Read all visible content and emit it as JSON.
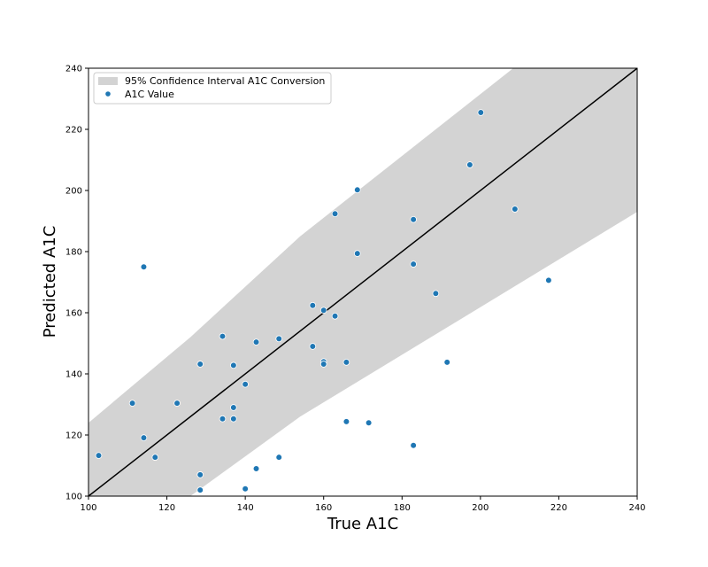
{
  "chart_data": {
    "type": "scatter",
    "title": "",
    "xlabel": "True A1C",
    "ylabel": "Predicted A1C",
    "xlim": [
      100,
      240
    ],
    "ylim": [
      100,
      240
    ],
    "xticks": [
      100,
      120,
      140,
      160,
      180,
      200,
      220,
      240
    ],
    "yticks": [
      100,
      120,
      140,
      160,
      180,
      200,
      220,
      240
    ],
    "grid": false,
    "legend_position": "top-left",
    "legend": [
      {
        "label": "95% Confidence Interval A1C Conversion",
        "kind": "band",
        "color": "#d3d3d3"
      },
      {
        "label": "A1C Value",
        "kind": "point",
        "color": "#1f77b4"
      }
    ],
    "identity_line": {
      "x": [
        100,
        240
      ],
      "y": [
        100,
        240
      ],
      "color": "#000000"
    },
    "confidence_band": {
      "x": [
        100,
        126,
        154,
        240
      ],
      "upper": [
        124,
        152,
        185,
        272
      ],
      "lower": [
        72,
        100,
        126,
        193
      ],
      "color": "#d3d3d3"
    },
    "series": [
      {
        "name": "A1C Value",
        "color": "#1f77b4",
        "points": [
          [
            102.6,
            113.3
          ],
          [
            111.2,
            130.4
          ],
          [
            114.1,
            175.0
          ],
          [
            114.1,
            119.1
          ],
          [
            117.0,
            112.7
          ],
          [
            122.6,
            130.4
          ],
          [
            128.5,
            143.2
          ],
          [
            128.5,
            107.0
          ],
          [
            128.5,
            102.0
          ],
          [
            134.2,
            152.3
          ],
          [
            134.2,
            125.3
          ],
          [
            137.0,
            142.8
          ],
          [
            137.0,
            129.0
          ],
          [
            137.0,
            125.3
          ],
          [
            140.0,
            136.6
          ],
          [
            140.0,
            102.4
          ],
          [
            142.8,
            150.4
          ],
          [
            142.8,
            109.0
          ],
          [
            148.6,
            151.5
          ],
          [
            148.6,
            112.7
          ],
          [
            157.2,
            162.4
          ],
          [
            157.2,
            149.0
          ],
          [
            160.0,
            160.8
          ],
          [
            160.0,
            144.0
          ],
          [
            160.0,
            143.2
          ],
          [
            162.9,
            192.4
          ],
          [
            162.9,
            158.9
          ],
          [
            165.8,
            143.8
          ],
          [
            165.8,
            124.4
          ],
          [
            168.6,
            200.2
          ],
          [
            168.6,
            179.4
          ],
          [
            171.5,
            124.0
          ],
          [
            182.9,
            190.5
          ],
          [
            182.9,
            175.9
          ],
          [
            182.9,
            116.6
          ],
          [
            188.6,
            166.3
          ],
          [
            191.5,
            143.8
          ],
          [
            197.3,
            208.4
          ],
          [
            200.1,
            225.5
          ],
          [
            208.8,
            193.9
          ],
          [
            217.4,
            170.6
          ]
        ]
      }
    ]
  }
}
